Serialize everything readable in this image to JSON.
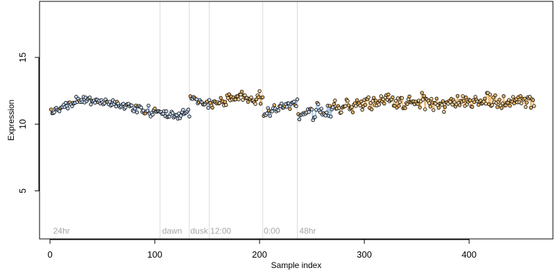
{
  "chart_data": {
    "type": "scatter",
    "xlabel": "Sample index",
    "ylabel": "Expression",
    "xlim": [
      -10,
      480
    ],
    "ylim": [
      1.4,
      19.2
    ],
    "x_ticks": [
      0,
      100,
      200,
      300,
      400
    ],
    "y_ticks": [
      5,
      10,
      15
    ],
    "vlines": [
      105,
      133,
      152,
      203,
      236
    ],
    "annotations": [
      {
        "text": "24hr",
        "x": 3,
        "y": 2.0
      },
      {
        "text": "dawn",
        "x": 107,
        "y": 2.0
      },
      {
        "text": "dusk",
        "x": 134,
        "y": 2.0
      },
      {
        "text": "12:00",
        "x": 153,
        "y": 2.0
      },
      {
        "text": "0:00",
        "x": 204,
        "y": 2.0
      },
      {
        "text": "48hr",
        "x": 238,
        "y": 2.0
      }
    ],
    "colors": {
      "axis": "#000000",
      "vline": "#d9d9d9",
      "annotation": "#a6a6a6",
      "line_blue": "#9bbbe0",
      "line_orange": "#e8b060",
      "marker_edge": "#000000"
    },
    "segments": [
      {
        "x_start": 1,
        "x_end": 105,
        "color": "blue",
        "base": [
          10.8,
          11.9,
          11.7,
          11.2,
          10.8
        ],
        "noise": 0.35,
        "seed": 11,
        "orange_every": 9
      },
      {
        "x_start": 106,
        "x_end": 133,
        "color": "blue",
        "base": [
          10.9,
          10.7,
          10.8
        ],
        "noise": 0.3,
        "seed": 23,
        "orange_every": 0
      },
      {
        "x_start": 134,
        "x_end": 152,
        "color": "blue",
        "base": [
          11.8,
          11.6
        ],
        "noise": 0.35,
        "seed": 31,
        "orange_every": 4
      },
      {
        "x_start": 153,
        "x_end": 203,
        "color": "orange",
        "base": [
          11.4,
          12.1,
          11.9
        ],
        "noise": 0.45,
        "seed": 47,
        "orange_every": 2
      },
      {
        "x_start": 204,
        "x_end": 236,
        "color": "blue",
        "base": [
          10.8,
          11.3,
          11.6
        ],
        "noise": 0.35,
        "seed": 53,
        "orange_every": 5
      },
      {
        "x_start": 237,
        "x_end": 270,
        "color": "blue",
        "base": [
          10.6,
          10.9,
          11.1
        ],
        "noise": 0.55,
        "seed": 61,
        "orange_every": 6
      },
      {
        "x_start": 271,
        "x_end": 462,
        "color": "orange",
        "base": [
          11.2,
          11.8,
          11.6,
          11.7,
          11.8
        ],
        "noise": 0.55,
        "seed": 79,
        "orange_every": 2
      }
    ]
  }
}
